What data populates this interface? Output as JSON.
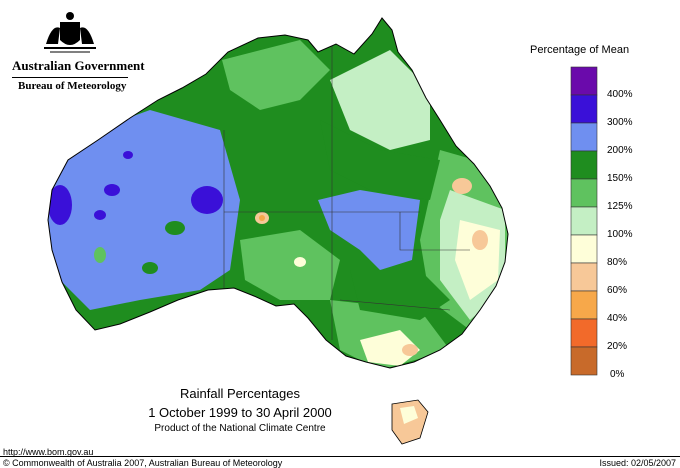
{
  "header": {
    "government": "Australian Government",
    "bureau": "Bureau of Meteorology"
  },
  "map": {
    "title": "Rainfall Percentages",
    "period": "1 October 1999 to 30 April 2000",
    "credit": "Product of the National Climate Centre",
    "region": "Australia",
    "colors": {
      "land_above_400": "#6a0aab",
      "land_300_400": "#3a10d8",
      "land_200_300": "#6f8ff0",
      "land_150_200": "#1f8d1f",
      "land_125_150": "#5fc25f",
      "land_100_125": "#c4efc4",
      "land_80_100": "#fefed9",
      "land_60_80": "#f7c898",
      "ocean": "#ffffff"
    }
  },
  "legend": {
    "title": "Percentage of Mean",
    "bins": [
      {
        "color": "#6a0aab",
        "label": ""
      },
      {
        "color": "#3a10d8",
        "label": "400%"
      },
      {
        "color": "#6f8ff0",
        "label": "300%"
      },
      {
        "color": "#1f8d1f",
        "label": "200%"
      },
      {
        "color": "#5fc25f",
        "label": "150%"
      },
      {
        "color": "#c4efc4",
        "label": "125%"
      },
      {
        "color": "#fefed9",
        "label": "100%"
      },
      {
        "color": "#f7c898",
        "label": "80%"
      },
      {
        "color": "#f7a84a",
        "label": "60%"
      },
      {
        "color": "#f26a2a",
        "label": "40%"
      },
      {
        "color": "#c86a2a",
        "label": "20%"
      }
    ],
    "bottom_label": "0%"
  },
  "footer": {
    "url": "http://www.bom.gov.au",
    "copyright": "© Commonwealth of Australia 2007, Australian Bureau of Meteorology",
    "issued": "Issued: 02/05/2007"
  }
}
